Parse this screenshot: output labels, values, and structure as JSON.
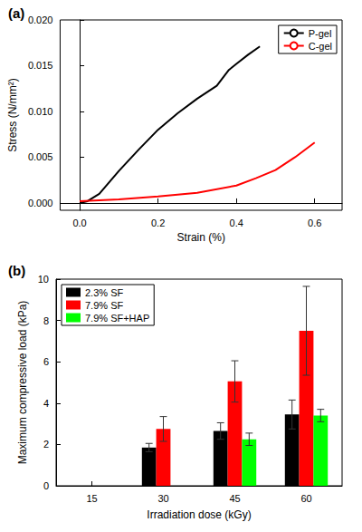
{
  "chart_data": [
    {
      "type": "line",
      "title": "(a)",
      "x_label": "Strain (%)",
      "y_label": "Stress (N/mm²)",
      "xlim": [
        -0.05,
        0.67
      ],
      "xticks": [
        {
          "value": 0,
          "label": "0.0"
        },
        0.2,
        0.4,
        0.6
      ],
      "ylim": [
        -0.0008,
        0.02
      ],
      "yticks": [
        {
          "value": 0,
          "label": "0.000"
        },
        0.005,
        {
          "value": 0.01,
          "label": "0.010"
        },
        0.015,
        {
          "value": 0.02,
          "label": "0.020"
        }
      ],
      "grid": false,
      "legend": "upper right",
      "series": [
        {
          "name": "P-gel",
          "color": "#000000",
          "x": [
            0.0,
            0.02,
            0.05,
            0.1,
            0.15,
            0.2,
            0.25,
            0.3,
            0.35,
            0.38,
            0.4,
            0.43,
            0.46
          ],
          "values": [
            0.0,
            0.0002,
            0.001,
            0.0035,
            0.0058,
            0.008,
            0.0098,
            0.0114,
            0.0128,
            0.0145,
            0.0152,
            0.0162,
            0.0171
          ]
        },
        {
          "name": "C-gel",
          "color": "#ff0000",
          "x": [
            0.0,
            0.1,
            0.2,
            0.3,
            0.4,
            0.45,
            0.5,
            0.55,
            0.6
          ],
          "values": [
            0.0002,
            0.0004,
            0.0007,
            0.0011,
            0.0019,
            0.0027,
            0.0036,
            0.005,
            0.0066
          ]
        }
      ]
    },
    {
      "type": "bar",
      "title": "(b)",
      "x_label": "Irradiation dose (kGy)",
      "y_label": "Maximum compressive load (kPa)",
      "categories": [
        "15",
        "30",
        "45",
        "60"
      ],
      "ylim": [
        0,
        10
      ],
      "yticks": [
        0,
        2,
        4,
        6,
        8,
        10
      ],
      "grid": false,
      "legend": "upper left",
      "series": [
        {
          "name": "2.3% SF",
          "color": "#000000",
          "values": [
            null,
            1.85,
            2.65,
            3.45
          ],
          "errors": [
            null,
            0.2,
            0.4,
            0.7
          ]
        },
        {
          "name": "7.9% SF",
          "color": "#ff0000",
          "values": [
            null,
            2.75,
            5.05,
            7.5
          ],
          "errors": [
            null,
            0.6,
            1.0,
            2.15
          ]
        },
        {
          "name": "7.9% SF+HAP",
          "color": "#00ff00",
          "values": [
            null,
            null,
            2.25,
            3.4
          ],
          "errors": [
            null,
            null,
            0.3,
            0.3
          ]
        }
      ]
    }
  ]
}
